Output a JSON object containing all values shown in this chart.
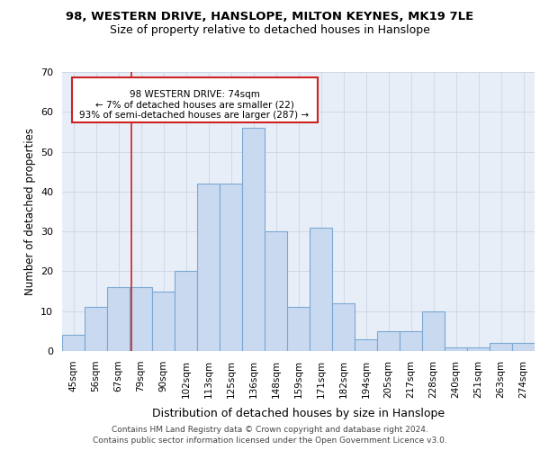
{
  "title1": "98, WESTERN DRIVE, HANSLOPE, MILTON KEYNES, MK19 7LE",
  "title2": "Size of property relative to detached houses in Hanslope",
  "xlabel": "Distribution of detached houses by size in Hanslope",
  "ylabel": "Number of detached properties",
  "categories": [
    "45sqm",
    "56sqm",
    "67sqm",
    "79sqm",
    "90sqm",
    "102sqm",
    "113sqm",
    "125sqm",
    "136sqm",
    "148sqm",
    "159sqm",
    "171sqm",
    "182sqm",
    "194sqm",
    "205sqm",
    "217sqm",
    "228sqm",
    "240sqm",
    "251sqm",
    "263sqm",
    "274sqm"
  ],
  "values": [
    4,
    11,
    16,
    16,
    15,
    20,
    42,
    42,
    56,
    30,
    11,
    31,
    12,
    3,
    5,
    5,
    10,
    1,
    1,
    2,
    2
  ],
  "bar_color": "#c9d9f0",
  "bar_edge_color": "#7aa8d4",
  "grid_color": "#d0d8e8",
  "bg_color": "#e8eef8",
  "red_line_color": "#cc2222",
  "annotation_box_color": "#ffffff",
  "annotation_border_color": "#cc2222",
  "annotation_text_line1": "98 WESTERN DRIVE: 74sqm",
  "annotation_text_line2": "← 7% of detached houses are smaller (22)",
  "annotation_text_line3": "93% of semi-detached houses are larger (287) →",
  "ylim": [
    0,
    70
  ],
  "yticks": [
    0,
    10,
    20,
    30,
    40,
    50,
    60,
    70
  ],
  "footer1": "Contains HM Land Registry data © Crown copyright and database right 2024.",
  "footer2": "Contains public sector information licensed under the Open Government Licence v3.0."
}
